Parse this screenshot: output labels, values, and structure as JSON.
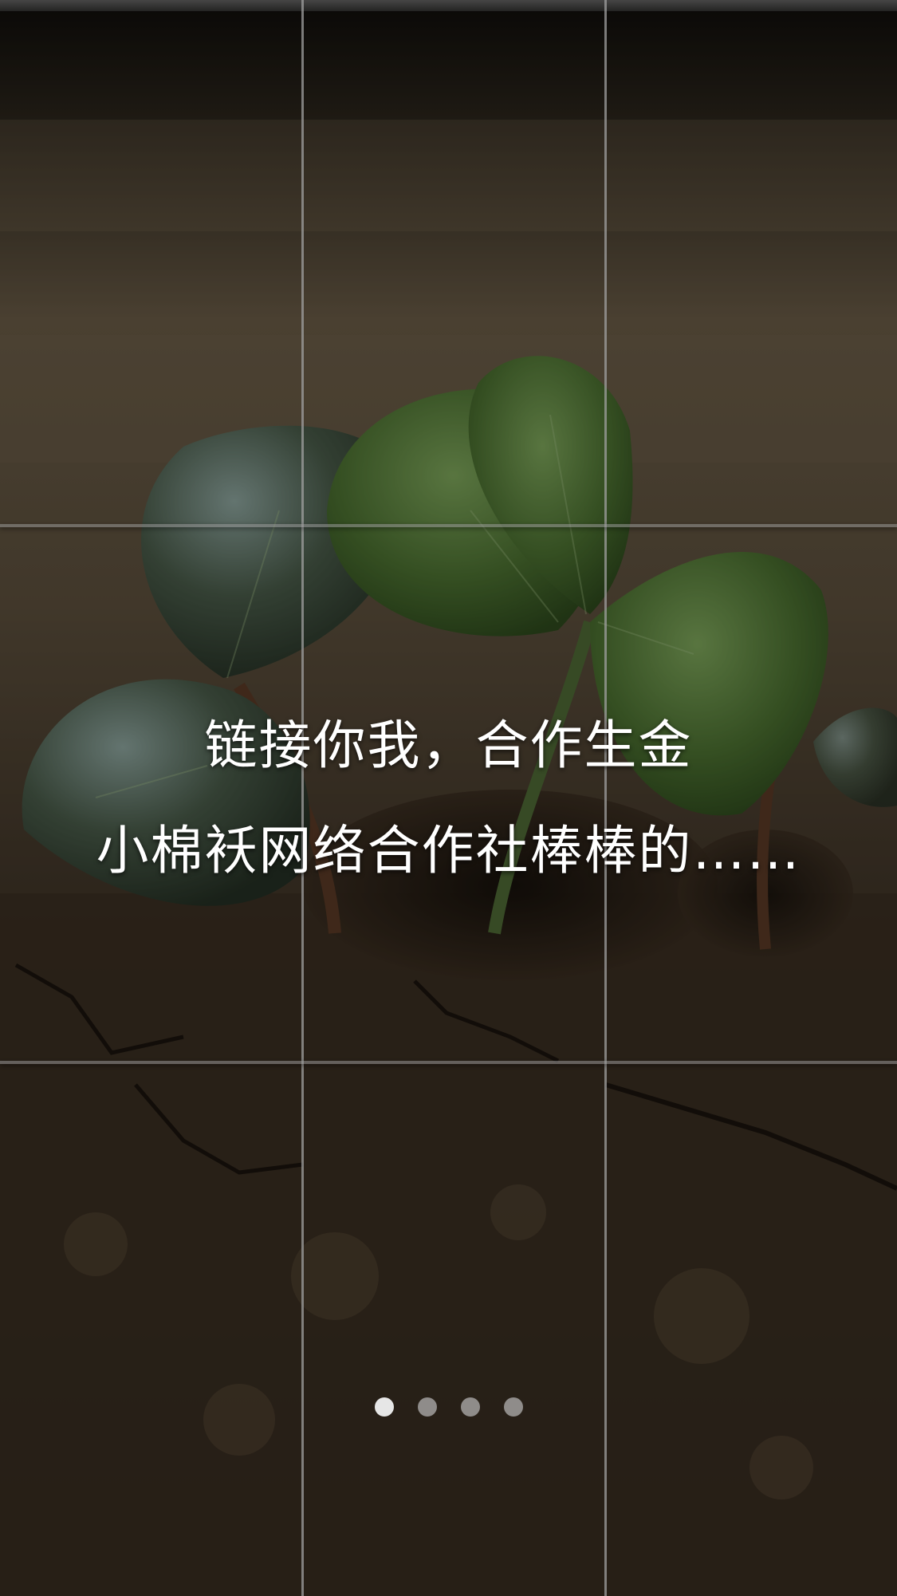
{
  "splash": {
    "headline_line1": "链接你我，合作生金",
    "headline_line2": "小棉袄网络合作社棒棒的……"
  },
  "pager": {
    "count": 4,
    "active_index": 0
  },
  "background": {
    "subject": "seedling-sprouting-from-cracked-soil",
    "colors": {
      "soil_dark": "#2b2218",
      "soil_mid": "#5a4a36",
      "leaf_green": "#4f7a34",
      "overlay": "#00000066"
    }
  },
  "grid": {
    "columns": 3,
    "rows": 3
  }
}
